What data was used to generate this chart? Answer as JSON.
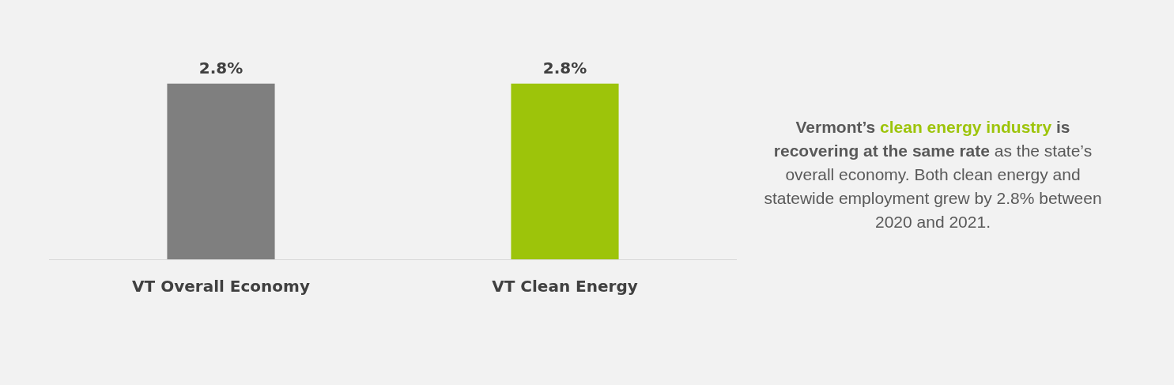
{
  "chart_data": {
    "type": "bar",
    "categories": [
      "VT Overall Economy",
      "VT Clean Energy"
    ],
    "values": [
      2.8,
      2.8
    ],
    "colors": [
      "#7f7f7f",
      "#9dc40a"
    ],
    "data_labels": true,
    "value_labels": [
      "2.8%",
      "2.8%"
    ],
    "annotations": [
      "Vermont’s",
      "clean energy industry",
      "is recovering at the same rate",
      "as the state’s overall economy. Both clean energy and statewide employment grew by 2.8% between 2020 and 2021."
    ]
  }
}
